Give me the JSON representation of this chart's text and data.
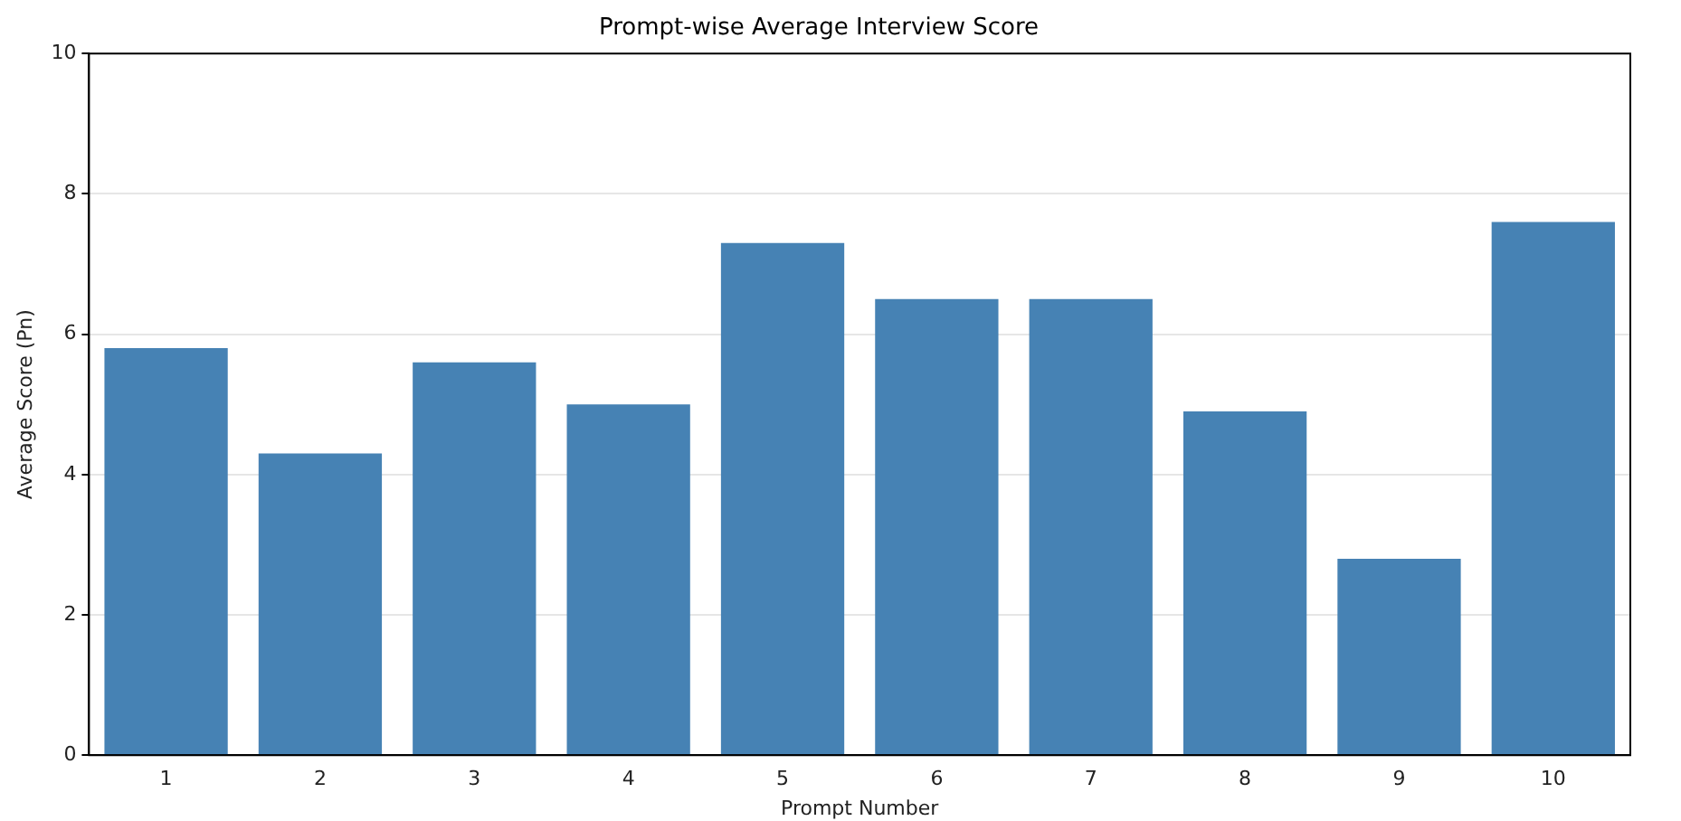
{
  "chart_data": {
    "type": "bar",
    "title": "Prompt-wise Average Interview Score",
    "xlabel": "Prompt Number",
    "ylabel": "Average Score (Pn)",
    "categories": [
      "1",
      "2",
      "3",
      "4",
      "5",
      "6",
      "7",
      "8",
      "9",
      "10"
    ],
    "values": [
      5.8,
      4.3,
      5.6,
      5.0,
      7.3,
      6.5,
      6.5,
      4.9,
      2.8,
      7.6
    ],
    "color": "#4682b4",
    "ylim": [
      0,
      10
    ],
    "yticks": [
      0,
      2,
      4,
      6,
      8,
      10
    ],
    "grid": "y",
    "legend": false
  }
}
